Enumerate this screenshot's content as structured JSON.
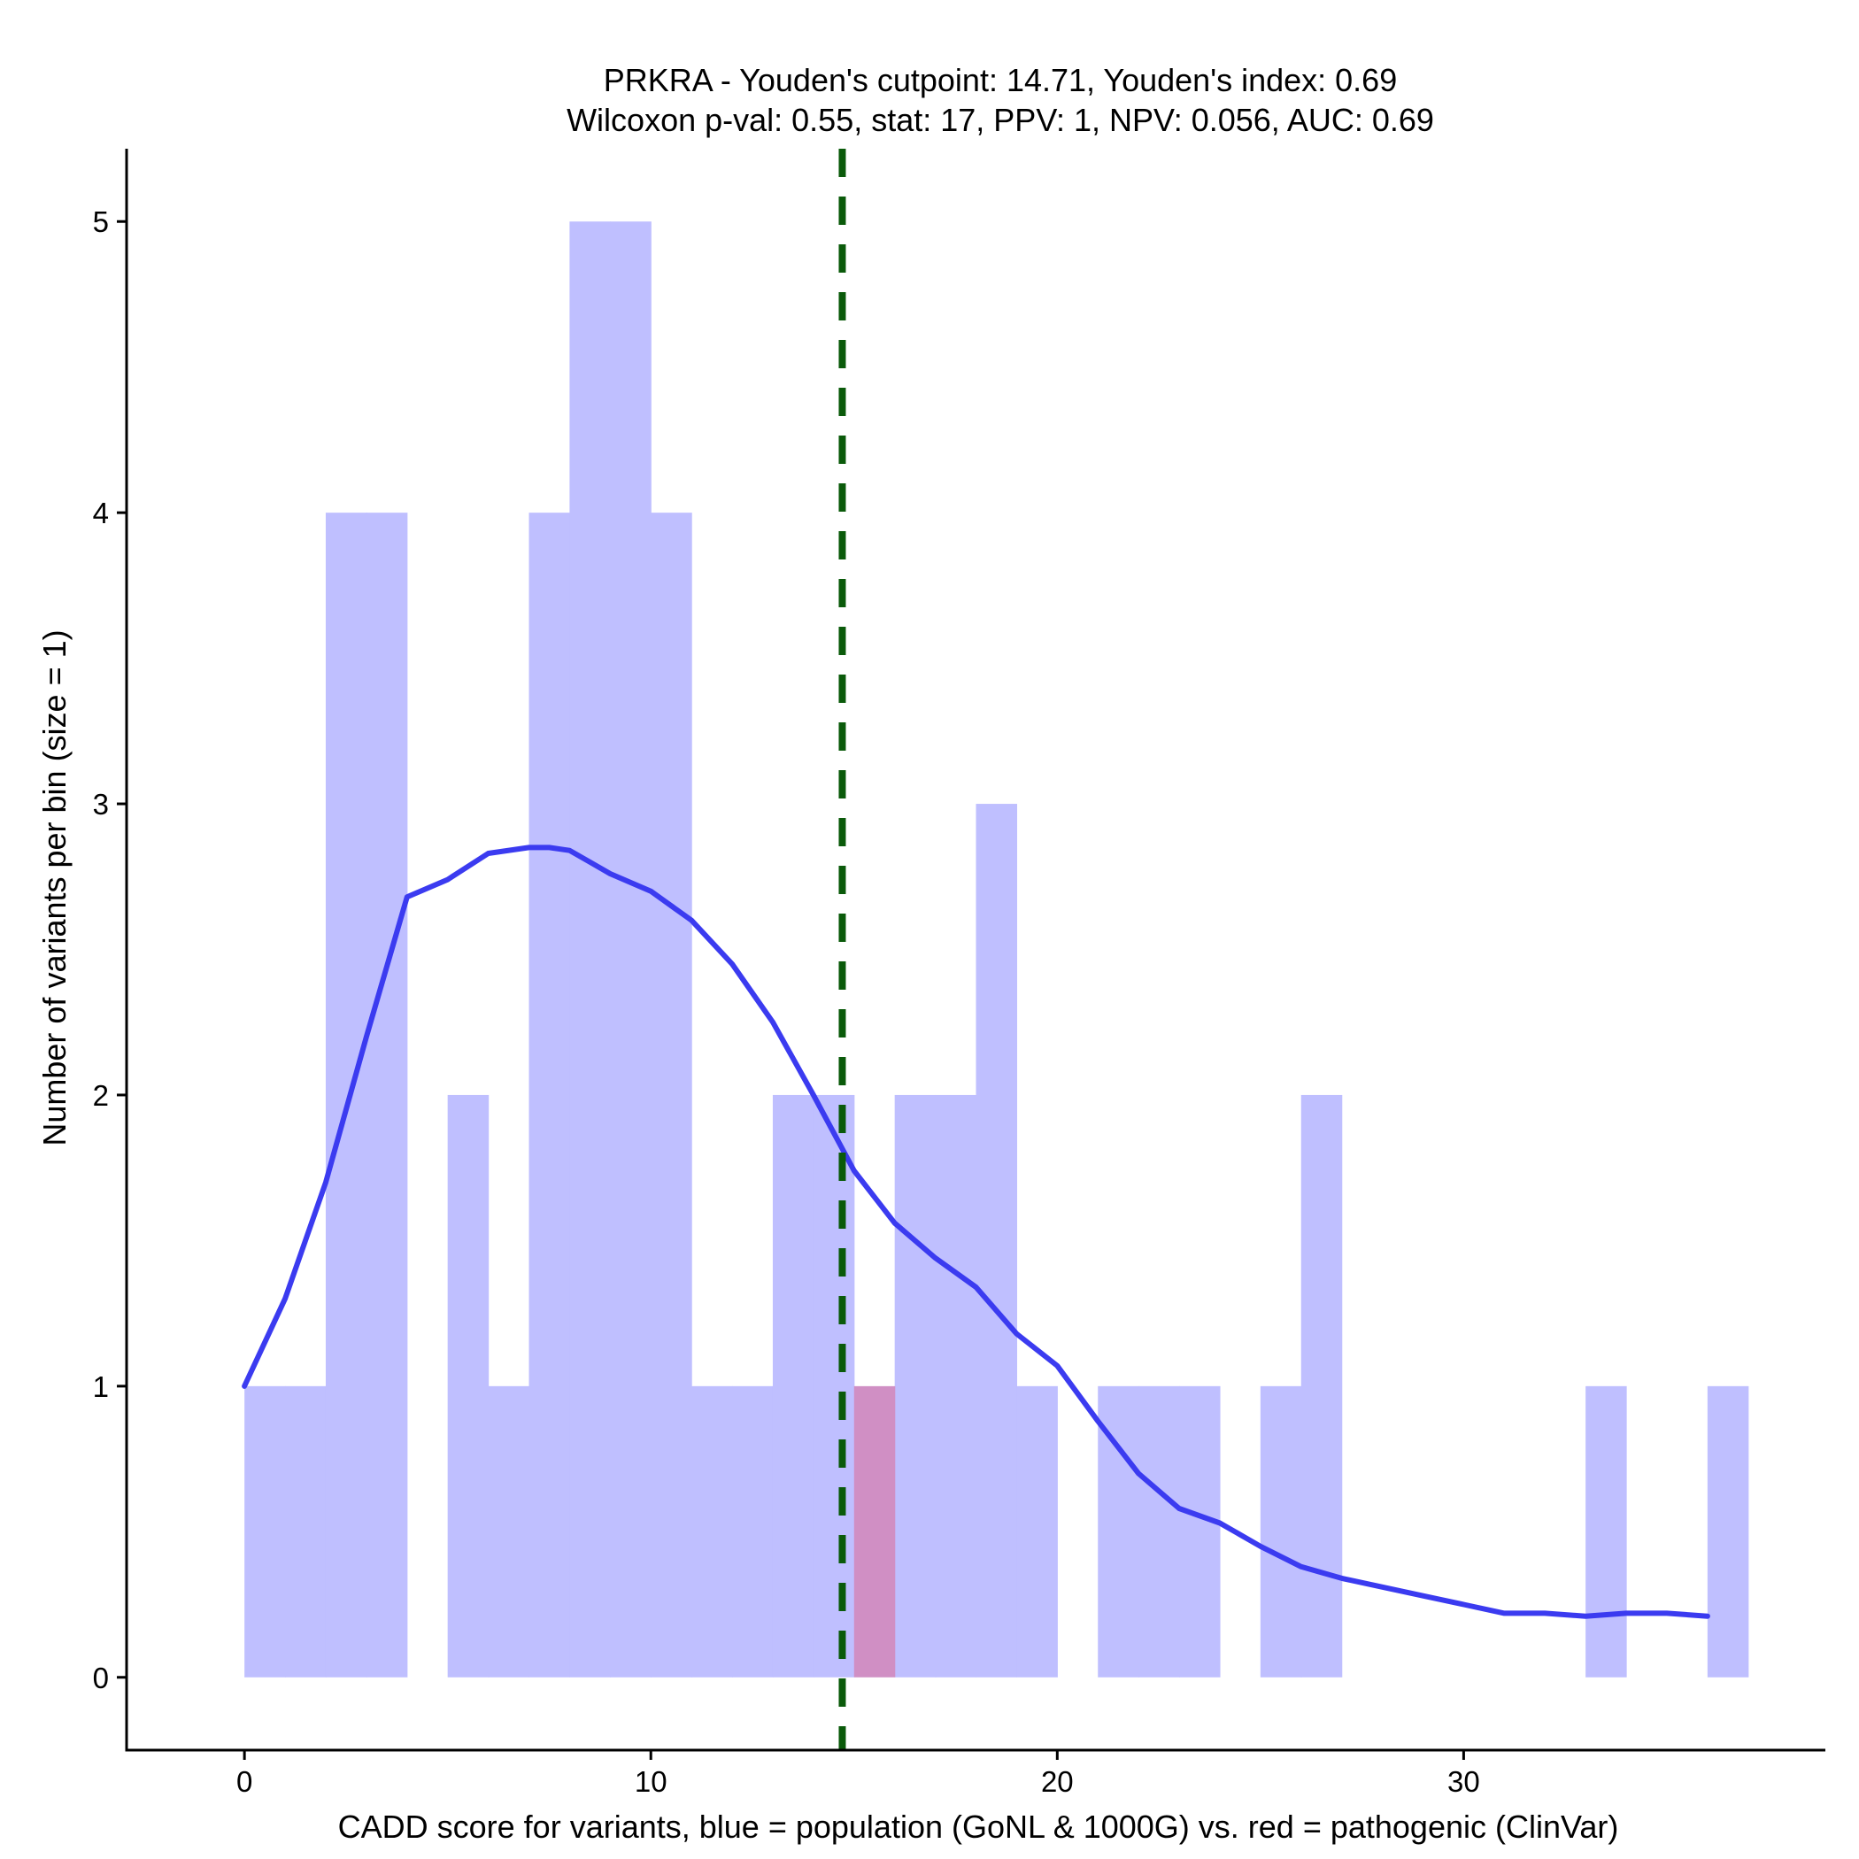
{
  "chart_data": {
    "type": "histogram",
    "title_line1": "PRKRA - Youden's cutpoint: 14.71, Youden's index: 0.69",
    "title_line2": "Wilcoxon p-val: 0.55, stat: 17, PPV: 1, NPV: 0.056, AUC: 0.69",
    "xlabel": "CADD score for variants, blue = population (GoNL & 1000G) vs. red = pathogenic (ClinVar)",
    "ylabel": "Number of variants per bin (size = 1)",
    "xlim": [
      -2.9,
      38.9
    ],
    "ylim": [
      -0.25,
      5.25
    ],
    "x_ticks": [
      0,
      10,
      20,
      30
    ],
    "y_ticks": [
      0,
      1,
      2,
      3,
      4,
      5
    ],
    "bin_width": 1,
    "cutpoint": 14.71,
    "colors": {
      "population": "#bfbfff",
      "pathogenic": "#d08fc4",
      "density": "#3b3bf0",
      "cutpoint": "#0a5a0a"
    },
    "series": [
      {
        "name": "population",
        "bins": [
          [
            0,
            1
          ],
          [
            1,
            1
          ],
          [
            2,
            4
          ],
          [
            3,
            4
          ],
          [
            5,
            2
          ],
          [
            6,
            1
          ],
          [
            7,
            4
          ],
          [
            8,
            5
          ],
          [
            9,
            5
          ],
          [
            10,
            4
          ],
          [
            11,
            1
          ],
          [
            12,
            1
          ],
          [
            13,
            2
          ],
          [
            14,
            2
          ],
          [
            16,
            2
          ],
          [
            17,
            2
          ],
          [
            18,
            3
          ],
          [
            19,
            1
          ],
          [
            21,
            1
          ],
          [
            22,
            1
          ],
          [
            23,
            1
          ],
          [
            25,
            1
          ],
          [
            26,
            2
          ],
          [
            33,
            1
          ],
          [
            36,
            1
          ]
        ]
      },
      {
        "name": "pathogenic",
        "bins": [
          [
            15,
            1
          ]
        ]
      }
    ],
    "density": {
      "name": "population density (scaled)",
      "x": [
        0,
        1,
        2,
        3,
        4,
        5,
        6,
        7,
        7.5,
        8,
        8.5,
        9,
        10,
        11,
        12,
        13,
        14,
        15,
        16,
        17,
        18,
        19,
        20,
        21,
        22,
        23,
        24,
        25,
        26,
        27,
        28,
        29,
        30,
        31,
        32,
        33,
        34,
        35,
        36
      ],
      "y": [
        1.0,
        1.3,
        1.7,
        2.2,
        2.68,
        2.74,
        2.83,
        2.85,
        2.85,
        2.84,
        2.8,
        2.76,
        2.7,
        2.6,
        2.45,
        2.25,
        2.0,
        1.74,
        1.56,
        1.44,
        1.34,
        1.18,
        1.07,
        0.88,
        0.7,
        0.58,
        0.53,
        0.45,
        0.38,
        0.34,
        0.31,
        0.28,
        0.25,
        0.22,
        0.22,
        0.21,
        0.22,
        0.22,
        0.21
      ]
    }
  }
}
